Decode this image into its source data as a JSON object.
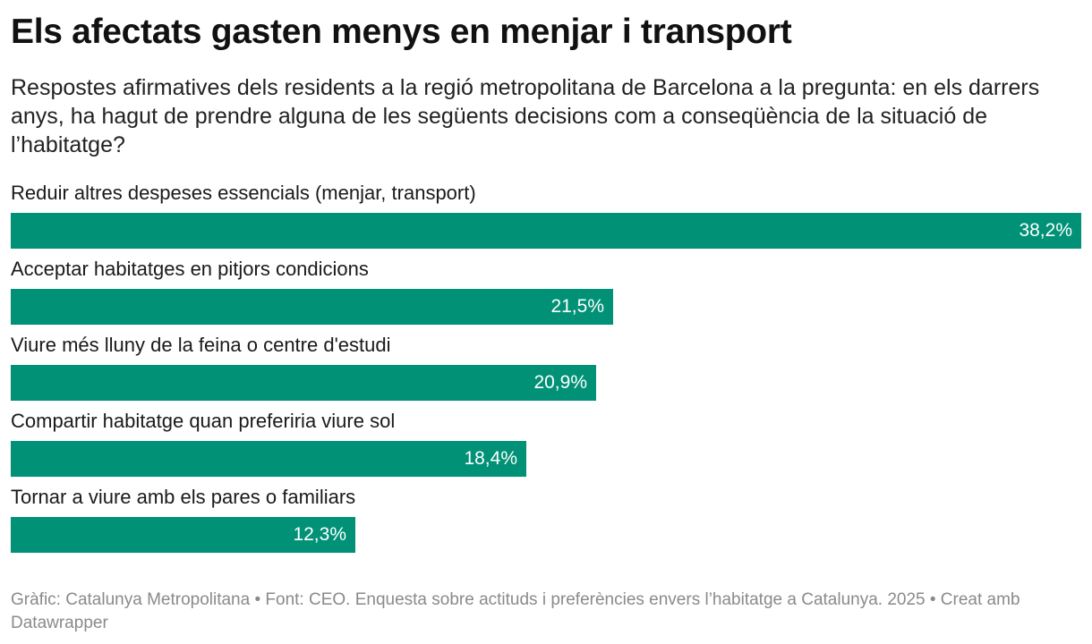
{
  "title": "Els afectats gasten menys en menjar i transport",
  "subtitle": "Respostes afirmatives dels residents a la regió metropolitana de Barcelona a la pregunta: en els darrers anys, ha hagut de prendre alguna de les següents decisions com a conseqüència de la situació de l’habitatge?",
  "footer": "Gràfic: Catalunya Metropolitana • Font: CEO. Enquesta sobre actituds i preferències envers l’habitatge a Catalunya. 2025 • Creat amb Datawrapper",
  "colors": {
    "bar": "#009177",
    "value_text": "#ffffff"
  },
  "chart_data": {
    "type": "bar",
    "orientation": "horizontal",
    "categories": [
      "Reduir altres despeses essencials (menjar, transport)",
      "Acceptar habitatges en pitjors condicions",
      "Viure més lluny de la feina o centre d'estudi",
      "Compartir habitatge quan preferiria viure sol",
      "Tornar a viure amb els pares o familiars"
    ],
    "values": [
      38.2,
      21.5,
      20.9,
      18.4,
      12.3
    ],
    "value_labels": [
      "38,2%",
      "21,5%",
      "20,9%",
      "18,4%",
      "12,3%"
    ],
    "unit": "%",
    "xlim": [
      0,
      38.2
    ],
    "grid": false,
    "legend": "none"
  }
}
